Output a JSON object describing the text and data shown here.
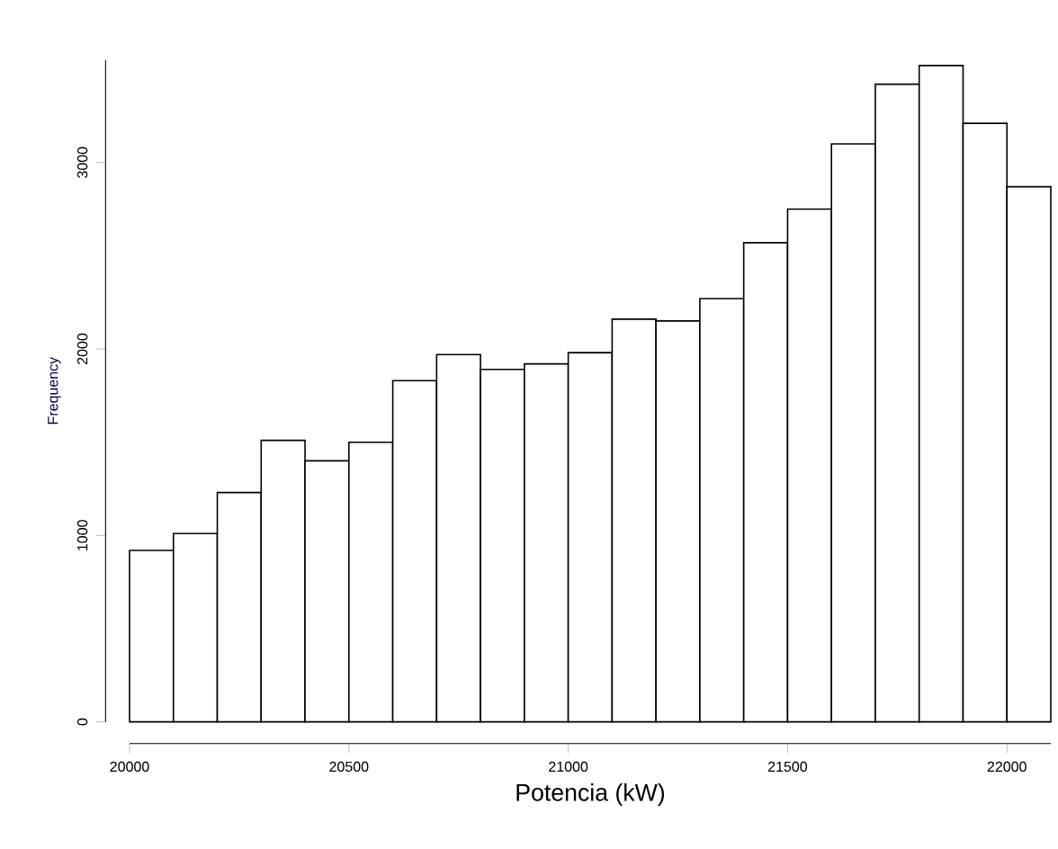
{
  "chart_data": {
    "type": "histogram",
    "xlabel": "Potencia (kW)",
    "ylabel": "Frequency",
    "bins": [
      20000,
      20100,
      20200,
      20300,
      20400,
      20500,
      20600,
      20700,
      20800,
      20900,
      21000,
      21100,
      21200,
      21300,
      21400,
      21500,
      21600,
      21700,
      21800,
      21900,
      22000,
      22100
    ],
    "values": [
      920,
      1010,
      1230,
      1510,
      1400,
      1500,
      1830,
      1970,
      1890,
      1920,
      1980,
      2160,
      2150,
      2270,
      2570,
      2750,
      3100,
      3420,
      3520,
      3210,
      2870
    ],
    "color": "#ffffff",
    "xlim": [
      20000,
      22100
    ],
    "ylim": [
      0,
      3550
    ],
    "xticks": [
      20000,
      20500,
      21000,
      21500,
      22000
    ],
    "yticks": [
      0,
      1000,
      2000,
      3000
    ],
    "grid": false
  }
}
